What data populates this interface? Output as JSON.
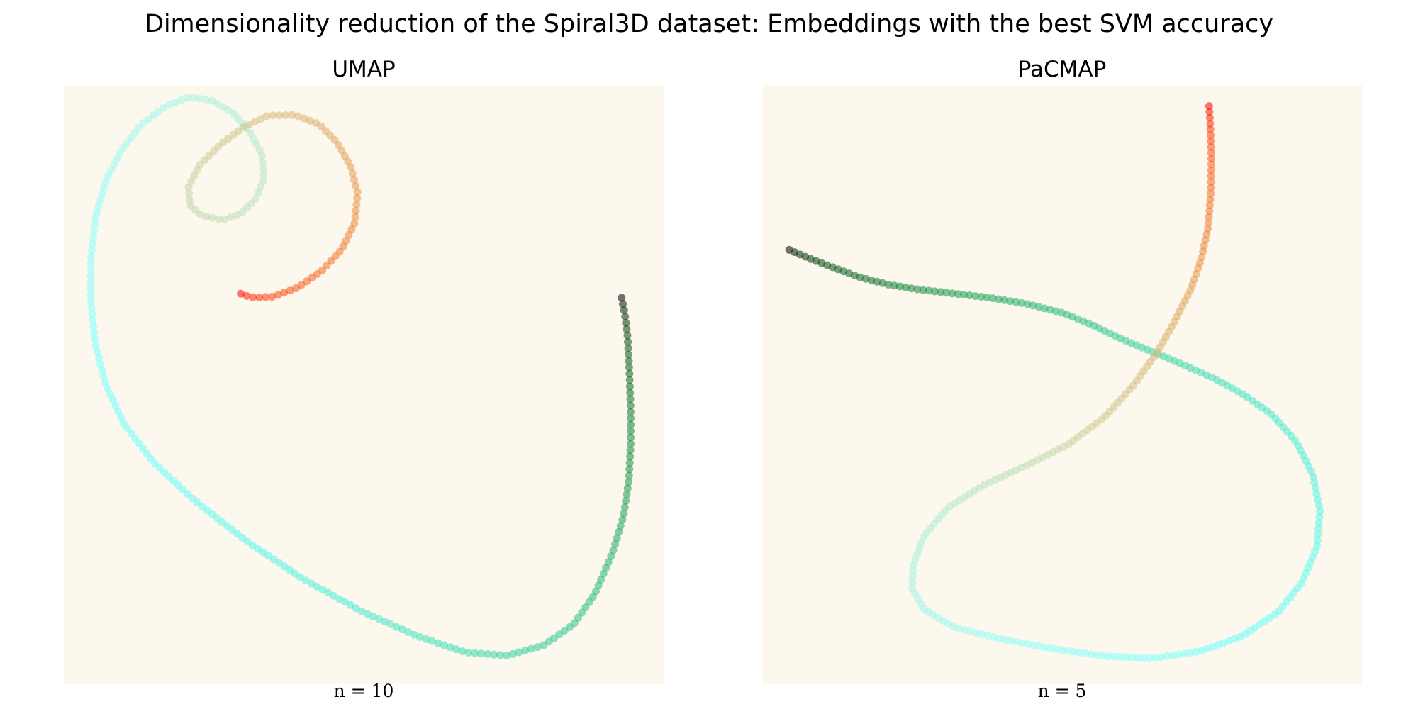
{
  "figure": {
    "suptitle": "Dimensionality reduction of the Spiral3D dataset: Embeddings with the best SVM accuracy",
    "background": "#fdf8ee",
    "colormap": "rainbow"
  },
  "chart_data": [
    {
      "type": "scatter",
      "title": "UMAP",
      "xlabel": "n = 10",
      "ylabel": "",
      "grid": false,
      "axes_visible": false,
      "xlim": [
        0,
        100
      ],
      "ylim": [
        0,
        100
      ],
      "point_count": 300,
      "color_by": "position along spiral (rainbow: purple → red)",
      "polyline": [
        [
          93,
          64.5
        ],
        [
          93.5,
          62
        ],
        [
          94,
          58
        ],
        [
          94.3,
          52
        ],
        [
          94.5,
          46
        ],
        [
          94.5,
          40
        ],
        [
          94.2,
          34
        ],
        [
          93.3,
          28
        ],
        [
          91.5,
          22
        ],
        [
          88.5,
          15
        ],
        [
          85,
          10
        ],
        [
          80,
          6.5
        ],
        [
          74,
          4.8
        ],
        [
          67,
          5.3
        ],
        [
          59,
          8
        ],
        [
          50,
          12
        ],
        [
          40,
          17.5
        ],
        [
          31,
          23.5
        ],
        [
          22,
          30.5
        ],
        [
          15,
          37
        ],
        [
          10,
          43.5
        ],
        [
          7,
          50
        ],
        [
          5.2,
          57
        ],
        [
          4.5,
          64
        ],
        [
          4.5,
          71
        ],
        [
          5.3,
          78
        ],
        [
          7,
          84
        ],
        [
          9.5,
          89
        ],
        [
          13,
          93.5
        ],
        [
          17,
          96.5
        ],
        [
          21,
          98
        ],
        [
          24.5,
          97.5
        ],
        [
          28,
          95.5
        ],
        [
          30.8,
          92.5
        ],
        [
          33,
          88.5
        ],
        [
          33.4,
          84.5
        ],
        [
          32,
          81
        ],
        [
          29.5,
          78.5
        ],
        [
          26.5,
          77.5
        ],
        [
          23,
          78.2
        ],
        [
          21,
          80
        ],
        [
          20.8,
          83
        ],
        [
          22.5,
          86.5
        ],
        [
          26,
          90
        ],
        [
          30,
          93
        ],
        [
          34,
          94.9
        ],
        [
          38.5,
          95
        ],
        [
          42.5,
          93.5
        ],
        [
          45.5,
          90.5
        ],
        [
          47.8,
          86.5
        ],
        [
          49,
          82
        ],
        [
          48.5,
          77
        ],
        [
          46.3,
          72.5
        ],
        [
          43,
          69
        ],
        [
          39,
          66.2
        ],
        [
          35,
          64.7
        ],
        [
          32,
          64.5
        ],
        [
          30.5,
          64.8
        ],
        [
          29.5,
          65.2
        ]
      ]
    },
    {
      "type": "scatter",
      "title": "PaCMAP",
      "xlabel": "n = 5",
      "ylabel": "",
      "grid": false,
      "axes_visible": false,
      "xlim": [
        0,
        100
      ],
      "ylim": [
        0,
        100
      ],
      "point_count": 300,
      "color_by": "position along spiral (rainbow: purple → red)",
      "polyline": [
        [
          4.5,
          72.5
        ],
        [
          8,
          71
        ],
        [
          12,
          69.5
        ],
        [
          16,
          68
        ],
        [
          21,
          66.7
        ],
        [
          26,
          65.9
        ],
        [
          32,
          65.2
        ],
        [
          38,
          64.5
        ],
        [
          44,
          63.5
        ],
        [
          50,
          62
        ],
        [
          55,
          60
        ],
        [
          60,
          57.6
        ],
        [
          65,
          55.5
        ],
        [
          70,
          53.4
        ],
        [
          75,
          51.2
        ],
        [
          80,
          48.5
        ],
        [
          85,
          45
        ],
        [
          89,
          40.5
        ],
        [
          91.8,
          35
        ],
        [
          93,
          29
        ],
        [
          92.5,
          23
        ],
        [
          90,
          17
        ],
        [
          86,
          12
        ],
        [
          80,
          8
        ],
        [
          73,
          5.5
        ],
        [
          65,
          4.3
        ],
        [
          57,
          4.7
        ],
        [
          48,
          6
        ],
        [
          40,
          7.5
        ],
        [
          32,
          9.5
        ],
        [
          27,
          12.5
        ],
        [
          25,
          16
        ],
        [
          25.2,
          20
        ],
        [
          27,
          24.8
        ],
        [
          31,
          29.5
        ],
        [
          37,
          33.3
        ],
        [
          44,
          36.5
        ],
        [
          51,
          40
        ],
        [
          57,
          44.5
        ],
        [
          62,
          50
        ],
        [
          66,
          55.6
        ],
        [
          69,
          61
        ],
        [
          71.5,
          66
        ],
        [
          73.2,
          71
        ],
        [
          74.3,
          76
        ],
        [
          74.8,
          82
        ],
        [
          74.9,
          88
        ],
        [
          74.7,
          93.5
        ],
        [
          74.5,
          96.5
        ]
      ]
    }
  ]
}
